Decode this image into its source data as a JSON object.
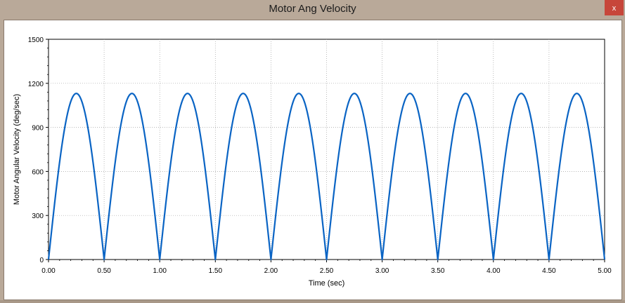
{
  "window": {
    "title": "Motor Ang Velocity",
    "close_label": "x"
  },
  "colors": {
    "series": "#0a64c4",
    "grid": "#a0a0a0",
    "close": "#c7463a"
  },
  "chart_data": {
    "type": "line",
    "title": "",
    "xlabel": "Time (sec)",
    "ylabel": "Motor Angular Velocity (deg/sec)",
    "xlim": [
      0,
      5
    ],
    "ylim": [
      0,
      1500
    ],
    "xticks": [
      "0.00",
      "0.50",
      "1.00",
      "1.50",
      "2.00",
      "2.50",
      "3.00",
      "3.50",
      "4.00",
      "4.50",
      "5.00"
    ],
    "yticks": [
      "0",
      "300",
      "600",
      "900",
      "1200",
      "1500"
    ],
    "grid": true,
    "legend": "none",
    "series": [
      {
        "shape": "rectified sine (|sin(2πt)|)",
        "amplitude": 1131,
        "period_sec": 0.5,
        "peak_x": [
          0.25,
          0.75,
          1.25,
          1.75,
          2.25,
          2.75,
          3.25,
          3.75,
          4.25,
          4.75
        ],
        "zero_x": [
          0,
          0.5,
          1.0,
          1.5,
          2.0,
          2.5,
          3.0,
          3.5,
          4.0,
          4.5,
          5.0
        ]
      }
    ]
  }
}
